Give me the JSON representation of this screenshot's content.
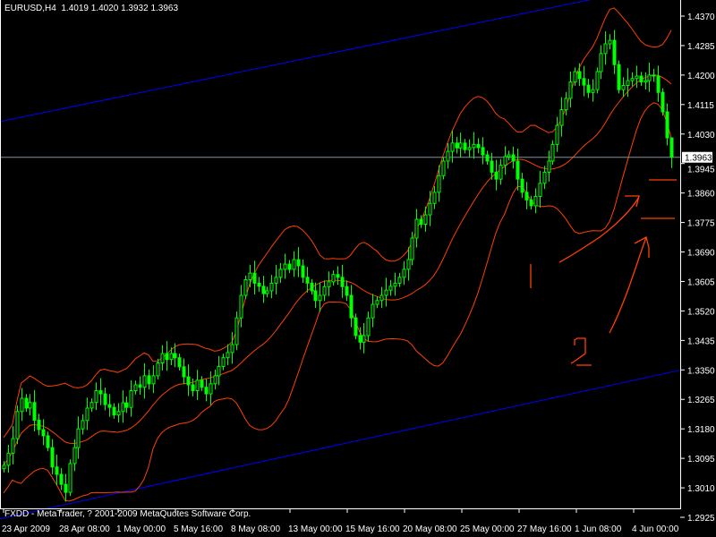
{
  "header": {
    "symbol": "EURUSD,H4",
    "ohlc": "1.4019 1.4020 1.3932 1.3963"
  },
  "footer": {
    "copyright": "FXDD - MetaTrader, ? 2001-2009 MetaQuotes Software Corp."
  },
  "colors": {
    "background": "#000000",
    "axis": "#ffffff",
    "candle_bull_border": "#00ff00",
    "candle_bear_fill": "#00ff00",
    "bollinger_bands": "#ff4000",
    "channel_lines": "#0000ff",
    "price_line": "#8090a0",
    "drawings": "#ff4000"
  },
  "chart_data": {
    "type": "candlestick",
    "symbol": "EURUSD",
    "timeframe": "H4",
    "indicator": "Bollinger Bands",
    "ylim": [
      1.2925,
      1.437
    ],
    "y_ticks": [
      "1.4370",
      "1.4285",
      "1.4200",
      "1.4115",
      "1.4030",
      "1.3945",
      "1.3860",
      "1.3775",
      "1.3690",
      "1.3605",
      "1.3520",
      "1.3435",
      "1.3350",
      "1.3265",
      "1.3180",
      "1.3095",
      "1.3010",
      "1.2925"
    ],
    "x_ticks": [
      "23 Apr 2009",
      "28 Apr 08:00",
      "1 May 00:00",
      "5 May 16:00",
      "8 May 08:00",
      "13 May 00:00",
      "15 May 16:00",
      "20 May 08:00",
      "25 May 00:00",
      "27 May 16:00",
      "1 Jun 08:00",
      "4 Jun 00:00"
    ],
    "current_price": "1.3963",
    "last_candle": {
      "open": 1.4019,
      "high": 1.402,
      "low": 1.3932,
      "close": 1.3963
    },
    "closes": [
      1.3075,
      1.311,
      1.3152,
      1.323,
      1.3268,
      1.324,
      1.3256,
      1.3205,
      1.3178,
      1.316,
      1.3126,
      1.307,
      1.3049,
      1.302,
      1.2997,
      1.308,
      1.3126,
      1.318,
      1.3204,
      1.324,
      1.3256,
      1.329,
      1.3281,
      1.325,
      1.3242,
      1.322,
      1.323,
      1.3255,
      1.3242,
      1.329,
      1.3307,
      1.33,
      1.3333,
      1.331,
      1.3333,
      1.337,
      1.3397,
      1.338,
      1.3397,
      1.3385,
      1.3359,
      1.333,
      1.3307,
      1.329,
      1.332,
      1.33,
      1.3281,
      1.331,
      1.3333,
      1.336,
      1.3385,
      1.34,
      1.3423,
      1.35,
      1.3565,
      1.361,
      1.3629,
      1.36,
      1.3591,
      1.357,
      1.3578,
      1.36,
      1.3617,
      1.364,
      1.3655,
      1.364,
      1.3668,
      1.365,
      1.3617,
      1.36,
      1.3578,
      1.355,
      1.3565,
      1.359,
      1.3604,
      1.3625,
      1.3617,
      1.359,
      1.3565,
      1.35,
      1.3449,
      1.343,
      1.3449,
      1.35,
      1.3539,
      1.355,
      1.3565,
      1.358,
      1.3591,
      1.36,
      1.3617,
      1.364,
      1.3668,
      1.373,
      1.3784,
      1.377,
      1.3797,
      1.383,
      1.3862,
      1.391,
      1.3952,
      1.398,
      1.4004,
      1.399,
      1.4004,
      1.3985,
      1.3991,
      1.4,
      1.3991,
      1.397,
      1.3952,
      1.392,
      1.39,
      1.394,
      1.3965,
      1.397,
      1.3952,
      1.39,
      1.3862,
      1.384,
      1.3823,
      1.385,
      1.3888,
      1.392,
      1.3952,
      1.4,
      1.4055,
      1.41,
      1.4133,
      1.418,
      1.421,
      1.419,
      1.4171,
      1.415,
      1.4158,
      1.421,
      1.4262,
      1.429,
      1.43,
      1.423,
      1.4158,
      1.417,
      1.4184,
      1.419,
      1.4197,
      1.418,
      1.4184,
      1.42,
      1.4197,
      1.415,
      1.4094,
      1.4019,
      1.3963
    ],
    "bollinger": {
      "period": 20,
      "deviations": 2
    },
    "channel_lines": [
      {
        "start_price": 1.4068,
        "end_price": 1.4409,
        "start_date": "23 Apr 2009",
        "end_date": "1 Jun 08:00"
      },
      {
        "start_price": 1.2959,
        "end_price": 1.332,
        "start_date": "28 Apr 08:00",
        "end_date": "4 Jun 00:00"
      }
    ],
    "grid": false,
    "drawn_annotation": "2"
  }
}
